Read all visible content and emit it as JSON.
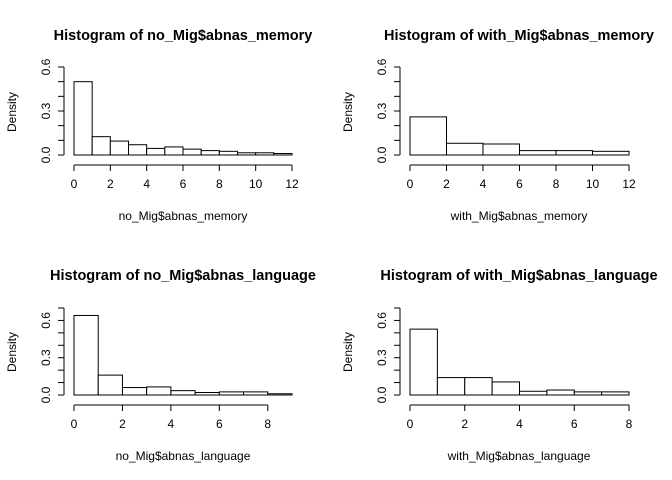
{
  "chart_data": [
    {
      "type": "histogram",
      "title": "Histogram of no_Mig$abnas_memory",
      "xlabel": "no_Mig$abnas_memory",
      "ylabel": "Density",
      "bin_edges": [
        0,
        1,
        2,
        3,
        4,
        5,
        6,
        7,
        8,
        9,
        10,
        11,
        12
      ],
      "values": [
        0.5,
        0.125,
        0.095,
        0.07,
        0.045,
        0.055,
        0.04,
        0.03,
        0.025,
        0.015,
        0.015,
        0.01
      ],
      "xlim": [
        0,
        12
      ],
      "ylim": [
        0,
        0.6
      ],
      "x_ticks": [
        0,
        2,
        4,
        6,
        8,
        10,
        12
      ],
      "x_tick_labels": [
        "0",
        "2",
        "4",
        "6",
        "8",
        "10",
        "12"
      ],
      "y_ticks": [
        0,
        0.1,
        0.2,
        0.3,
        0.4,
        0.5,
        0.6
      ],
      "y_tick_labels": [
        "0.0",
        "",
        "",
        "0.3",
        "",
        "",
        "0.6"
      ]
    },
    {
      "type": "histogram",
      "title": "Histogram of with_Mig$abnas_memory",
      "xlabel": "with_Mig$abnas_memory",
      "ylabel": "Density",
      "bin_edges": [
        0,
        2,
        4,
        6,
        8,
        10,
        12
      ],
      "values": [
        0.26,
        0.08,
        0.075,
        0.03,
        0.03,
        0.025
      ],
      "xlim": [
        0,
        12
      ],
      "ylim": [
        0,
        0.6
      ],
      "x_ticks": [
        0,
        2,
        4,
        6,
        8,
        10,
        12
      ],
      "x_tick_labels": [
        "0",
        "2",
        "4",
        "6",
        "8",
        "10",
        "12"
      ],
      "y_ticks": [
        0,
        0.1,
        0.2,
        0.3,
        0.4,
        0.5,
        0.6
      ],
      "y_tick_labels": [
        "0.0",
        "",
        "",
        "0.3",
        "",
        "",
        "0.6"
      ]
    },
    {
      "type": "histogram",
      "title": "Histogram of no_Mig$abnas_language",
      "xlabel": "no_Mig$abnas_language",
      "ylabel": "Density",
      "bin_edges": [
        0,
        1,
        2,
        3,
        4,
        5,
        6,
        7,
        8,
        9
      ],
      "values": [
        0.64,
        0.16,
        0.06,
        0.065,
        0.035,
        0.02,
        0.025,
        0.025,
        0.01
      ],
      "xlim": [
        0,
        9
      ],
      "ylim": [
        0,
        0.7
      ],
      "x_ticks": [
        0,
        2,
        4,
        6,
        8
      ],
      "x_tick_labels": [
        "0",
        "2",
        "4",
        "6",
        "8"
      ],
      "y_ticks": [
        0,
        0.1,
        0.2,
        0.3,
        0.4,
        0.5,
        0.6,
        0.7
      ],
      "y_tick_labels": [
        "0.0",
        "",
        "",
        "0.3",
        "",
        "",
        "0.6",
        ""
      ]
    },
    {
      "type": "histogram",
      "title": "Histogram of with_Mig$abnas_language",
      "xlabel": "with_Mig$abnas_language",
      "ylabel": "Density",
      "bin_edges": [
        0,
        1,
        2,
        3,
        4,
        5,
        6,
        7,
        8
      ],
      "values": [
        0.53,
        0.14,
        0.14,
        0.105,
        0.03,
        0.04,
        0.025,
        0.025
      ],
      "xlim": [
        0,
        8
      ],
      "ylim": [
        0,
        0.7
      ],
      "x_ticks": [
        0,
        2,
        4,
        6,
        8
      ],
      "x_tick_labels": [
        "0",
        "2",
        "4",
        "6",
        "8"
      ],
      "y_ticks": [
        0,
        0.1,
        0.2,
        0.3,
        0.4,
        0.5,
        0.6,
        0.7
      ],
      "y_tick_labels": [
        "0.0",
        "",
        "",
        "0.3",
        "",
        "",
        "0.6",
        ""
      ]
    }
  ]
}
